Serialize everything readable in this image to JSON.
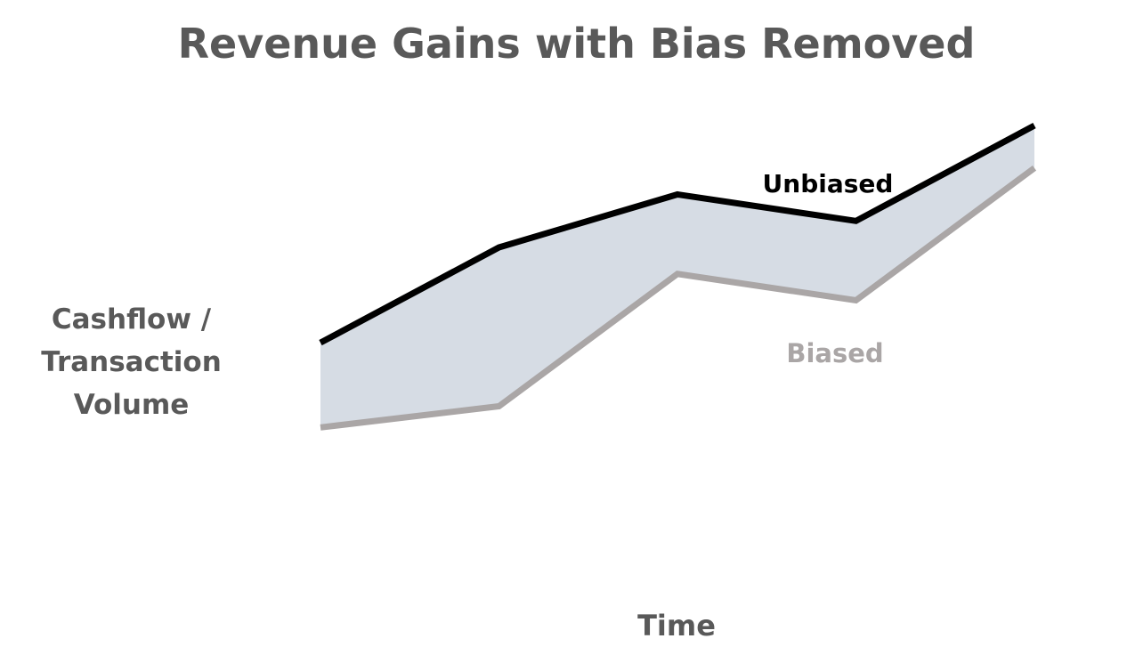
{
  "chart_data": {
    "type": "area",
    "title": "Revenue Gains with Bias Removed",
    "xlabel": "Time",
    "ylabel_lines": [
      "Cashflow /",
      "Transaction",
      "Volume"
    ],
    "x": [
      1,
      2,
      3,
      4,
      5
    ],
    "series": [
      {
        "name": "Unbiased",
        "values": [
          6.2,
          8.0,
          9.0,
          8.5,
          10.3
        ],
        "color": "#000000"
      },
      {
        "name": "Biased",
        "values": [
          4.6,
          5.0,
          7.5,
          7.0,
          9.5
        ],
        "color": "#aaa6a6"
      }
    ],
    "fill_between_color": "#d6dce4",
    "xlim": [
      1,
      5
    ],
    "ylim": [
      0,
      12
    ],
    "grid": false,
    "axes_visible": false
  }
}
